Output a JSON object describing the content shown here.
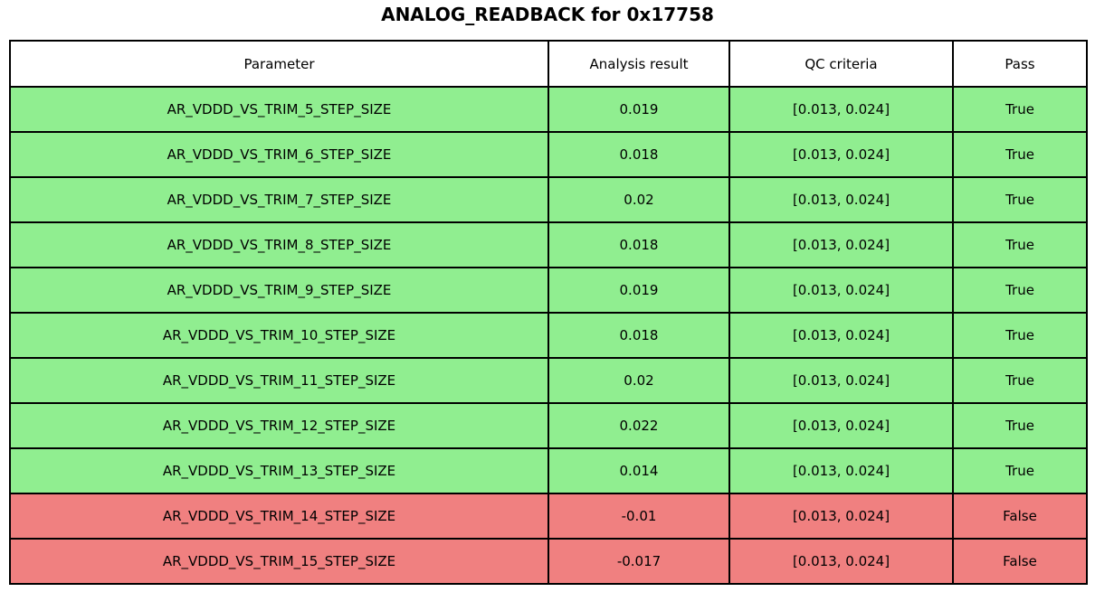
{
  "title": "ANALOG_READBACK for 0x17758",
  "table": {
    "columns": {
      "parameter": "Parameter",
      "result": "Analysis result",
      "criteria": "QC criteria",
      "pass": "Pass"
    },
    "rows": [
      {
        "parameter": "AR_VDDD_VS_TRIM_5_STEP_SIZE",
        "result": "0.019",
        "criteria": "[0.013, 0.024]",
        "pass": "True"
      },
      {
        "parameter": "AR_VDDD_VS_TRIM_6_STEP_SIZE",
        "result": "0.018",
        "criteria": "[0.013, 0.024]",
        "pass": "True"
      },
      {
        "parameter": "AR_VDDD_VS_TRIM_7_STEP_SIZE",
        "result": "0.02",
        "criteria": "[0.013, 0.024]",
        "pass": "True"
      },
      {
        "parameter": "AR_VDDD_VS_TRIM_8_STEP_SIZE",
        "result": "0.018",
        "criteria": "[0.013, 0.024]",
        "pass": "True"
      },
      {
        "parameter": "AR_VDDD_VS_TRIM_9_STEP_SIZE",
        "result": "0.019",
        "criteria": "[0.013, 0.024]",
        "pass": "True"
      },
      {
        "parameter": "AR_VDDD_VS_TRIM_10_STEP_SIZE",
        "result": "0.018",
        "criteria": "[0.013, 0.024]",
        "pass": "True"
      },
      {
        "parameter": "AR_VDDD_VS_TRIM_11_STEP_SIZE",
        "result": "0.02",
        "criteria": "[0.013, 0.024]",
        "pass": "True"
      },
      {
        "parameter": "AR_VDDD_VS_TRIM_12_STEP_SIZE",
        "result": "0.022",
        "criteria": "[0.013, 0.024]",
        "pass": "True"
      },
      {
        "parameter": "AR_VDDD_VS_TRIM_13_STEP_SIZE",
        "result": "0.014",
        "criteria": "[0.013, 0.024]",
        "pass": "True"
      },
      {
        "parameter": "AR_VDDD_VS_TRIM_14_STEP_SIZE",
        "result": "-0.01",
        "criteria": "[0.013, 0.024]",
        "pass": "False"
      },
      {
        "parameter": "AR_VDDD_VS_TRIM_15_STEP_SIZE",
        "result": "-0.017",
        "criteria": "[0.013, 0.024]",
        "pass": "False"
      }
    ]
  },
  "colors": {
    "pass_row_bg": "#90ee90",
    "fail_row_bg": "#f08080",
    "header_bg": "#ffffff",
    "border": "#000000",
    "text": "#000000"
  }
}
